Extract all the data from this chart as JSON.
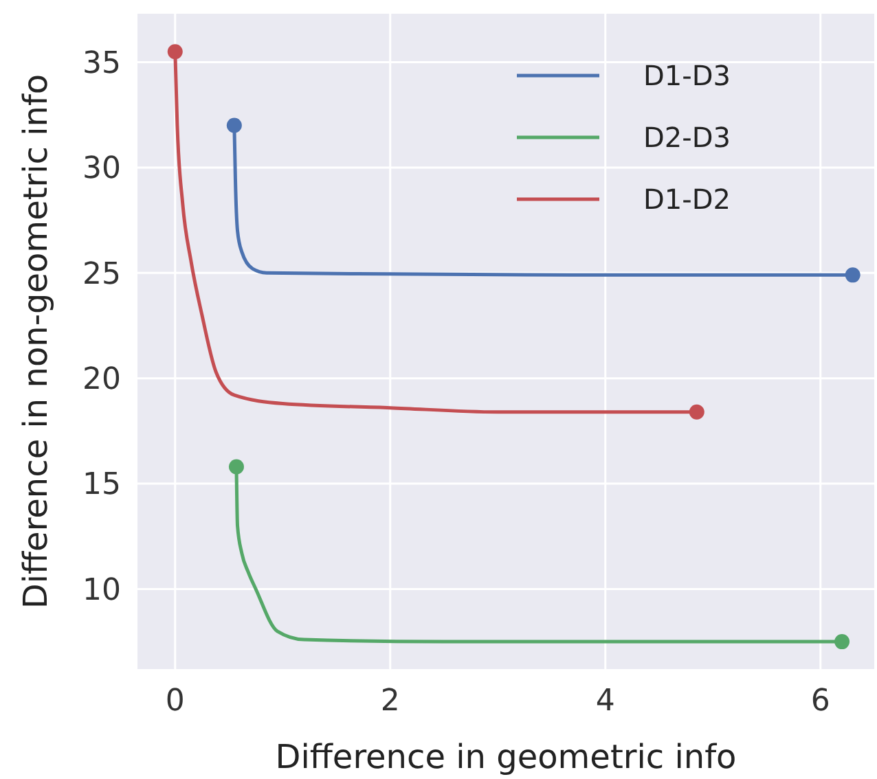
{
  "chart_data": {
    "type": "line",
    "xlabel": "Difference in geometric info",
    "ylabel": "Difference in non-geometric info",
    "xlim": [
      -0.35,
      6.5
    ],
    "ylim": [
      6.2,
      37.3
    ],
    "xticks": [
      0,
      2,
      4,
      6
    ],
    "yticks": [
      10,
      15,
      20,
      25,
      30,
      35
    ],
    "grid": true,
    "legend": "top right",
    "line_style": "solid",
    "series": [
      {
        "name": "D1-D3",
        "color": "#4c72b0",
        "x": [
          0.55,
          0.56,
          0.58,
          0.62,
          0.72,
          0.85,
          2,
          4,
          6.3
        ],
        "values": [
          32,
          29.5,
          27,
          26,
          25.2,
          25,
          24.95,
          24.9,
          24.9
        ]
      },
      {
        "name": "D2-D3",
        "color": "#55a868",
        "x": [
          0.57,
          0.58,
          0.62,
          0.68,
          0.75,
          0.95,
          1.2,
          2.5,
          4,
          6.2
        ],
        "values": [
          15.8,
          13,
          11.7,
          10.8,
          10,
          8,
          7.6,
          7.5,
          7.5,
          7.5
        ]
      },
      {
        "name": "D1-D2",
        "color": "#c44e52",
        "x": [
          0,
          0.02,
          0.07,
          0.15,
          0.25,
          0.38,
          0.55,
          1,
          2,
          3,
          4.85
        ],
        "values": [
          35.5,
          32,
          28.3,
          25.5,
          23,
          20.3,
          19.2,
          18.8,
          18.6,
          18.4,
          18.4
        ]
      },
      {
        "type": "scatter",
        "marker": "circle",
        "color": "#4c72b0",
        "x": [
          0.55,
          6.3
        ],
        "values": [
          32,
          24.9
        ]
      },
      {
        "type": "scatter",
        "marker": "circle",
        "color": "#55a868",
        "x": [
          0.57,
          6.2
        ],
        "values": [
          15.8,
          7.5
        ]
      },
      {
        "type": "scatter",
        "marker": "circle",
        "color": "#c44e52",
        "x": [
          0,
          4.85
        ],
        "values": [
          35.5,
          18.4
        ]
      }
    ]
  }
}
